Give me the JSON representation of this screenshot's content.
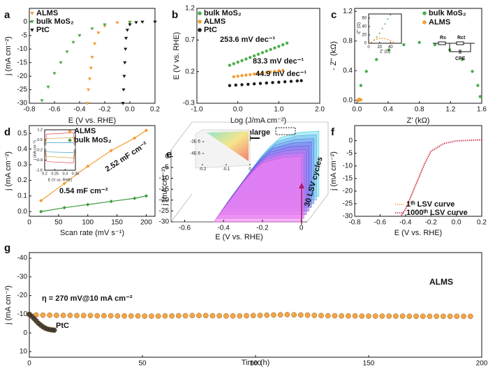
{
  "chart_data": [
    {
      "panel": "a",
      "type": "line",
      "xlabel": "E (V vs. RHE)",
      "ylabel": "j (mA cm⁻²)",
      "xlim": [
        -0.8,
        0.2
      ],
      "ylim": [
        -30,
        5
      ],
      "xticks": [
        -0.8,
        -0.6,
        -0.4,
        -0.2,
        {
          "value": 0,
          "label": "0.0"
        },
        0.2
      ],
      "yticks": [
        -30,
        -25,
        -20,
        -15,
        -10,
        -5,
        0
      ],
      "series": [
        {
          "name": "ALMS",
          "color": "#f39c34",
          "marker": "tri",
          "x": [
            0.2,
            0,
            -0.1,
            -0.2,
            -0.25,
            -0.28,
            -0.3,
            -0.31,
            -0.32,
            -0.33,
            -0.34
          ],
          "values": [
            0,
            0,
            -0.3,
            -1.5,
            -4,
            -8,
            -13,
            -17,
            -21,
            -25,
            -30
          ]
        },
        {
          "name": "bulk MoS₂",
          "color": "#4dae4a",
          "marker": "tri",
          "x": [
            0.2,
            0,
            -0.2,
            -0.3,
            -0.4,
            -0.45,
            -0.5,
            -0.55,
            -0.6,
            -0.65,
            -0.7
          ],
          "values": [
            0,
            -0.2,
            -1,
            -2.5,
            -5,
            -7.5,
            -11,
            -15,
            -19,
            -24,
            -29
          ]
        },
        {
          "name": "PtC",
          "color": "#1a1a1a",
          "marker": "tri",
          "x": [
            0.2,
            0.1,
            0.05,
            0,
            -0.02,
            -0.03,
            -0.035,
            -0.04,
            -0.045,
            -0.05,
            -0.055
          ],
          "values": [
            0,
            0,
            -0.2,
            -1,
            -3,
            -6,
            -10,
            -15,
            -20,
            -25,
            -30
          ]
        }
      ]
    },
    {
      "panel": "b",
      "type": "line",
      "xlabel": "Log (J/mA cm⁻²)",
      "ylabel": "E (V vs. RHE)",
      "xlim": [
        -1,
        2
      ],
      "ylim": [
        -0.3,
        1.2
      ],
      "xticks": [
        {
          "value": -1,
          "label": "-1.0"
        },
        {
          "value": 0,
          "label": "0.0"
        },
        {
          "value": 1,
          "label": "1.0"
        },
        {
          "value": 2,
          "label": "2.0"
        }
      ],
      "yticks": [
        -0.3,
        0.2,
        0.7,
        1.2
      ],
      "series": [
        {
          "name": "bulk MoS₂",
          "color": "#4dae4a",
          "marker": "circle",
          "x": [
            -0.2,
            -0.1,
            0,
            0.1,
            0.2,
            0.3,
            0.4,
            0.5,
            0.6,
            0.7,
            0.8,
            0.9,
            1.0,
            1.1,
            1.2
          ],
          "values": [
            0.3,
            0.325,
            0.35,
            0.375,
            0.4,
            0.425,
            0.45,
            0.475,
            0.5,
            0.525,
            0.55,
            0.575,
            0.6,
            0.625,
            0.65
          ]
        },
        {
          "name": "ALMS",
          "color": "#f39c34",
          "marker": "circle",
          "x": [
            -0.1,
            0,
            0.1,
            0.2,
            0.3,
            0.4,
            0.5,
            0.6,
            0.7,
            0.8,
            0.9,
            1.0,
            1.1
          ],
          "values": [
            0.12,
            0.128,
            0.137,
            0.145,
            0.153,
            0.162,
            0.17,
            0.178,
            0.187,
            0.195,
            0.203,
            0.212,
            0.22
          ]
        },
        {
          "name": "PtC",
          "color": "#1a1a1a",
          "marker": "circle",
          "x": [
            -0.2,
            -0.05,
            0.1,
            0.25,
            0.4,
            0.55,
            0.7,
            0.85,
            1.0,
            1.15,
            1.3,
            1.45,
            1.55
          ],
          "values": [
            -0.02,
            -0.013,
            -0.007,
            0,
            0.007,
            0.013,
            0.02,
            0.027,
            0.033,
            0.04,
            0.047,
            0.053,
            0.058
          ]
        }
      ],
      "annotations": [
        {
          "text": "253.6 mV dec⁻¹",
          "color": "#3d9a3a"
        },
        {
          "text": "83.3 mV dec⁻¹",
          "color": "#f39c34"
        },
        {
          "text": "44.9 mV dec⁻¹",
          "color": "#1a1a1a"
        }
      ]
    },
    {
      "panel": "c",
      "type": "line",
      "xlabel": "Z' (kΩ)",
      "ylabel": "- Z'' (kΩ)",
      "xlim": [
        -0.03,
        1.6
      ],
      "ylim": [
        -0.04,
        1.24
      ],
      "xticks": [
        {
          "value": 0,
          "label": "0.0"
        },
        0.4,
        0.8,
        1.2,
        1.6
      ],
      "yticks": [
        {
          "value": 0,
          "label": "0.0"
        },
        0.4,
        0.8,
        1.2
      ],
      "series": [
        {
          "name": "bulk MoS₂",
          "color": "#4dae4a",
          "marker": "circle",
          "x": [
            0.02,
            0.05,
            0.12,
            0.25,
            0.41,
            0.6,
            0.8,
            1.0,
            1.19,
            1.35,
            1.48,
            1.55,
            1.58
          ],
          "values": [
            0,
            0.2,
            0.39,
            0.55,
            0.68,
            0.75,
            0.78,
            0.75,
            0.68,
            0.55,
            0.39,
            0.2,
            0.05
          ]
        },
        {
          "name": "ALMS",
          "color": "#f39c34",
          "marker": "circle",
          "x": [
            0.01,
            0.02,
            0.03,
            0.04,
            0.05
          ],
          "values": [
            0,
            0.01,
            0.015,
            0.01,
            0.005
          ]
        }
      ],
      "circuit": [
        "Rs",
        "Rct",
        "CPE"
      ]
    },
    {
      "type": "line",
      "inset": true,
      "xlabel": "Z' (Ω)",
      "ylabel": "-Z'' (Ω)",
      "xlim": [
        0,
        60
      ],
      "ylim": [
        0,
        70
      ],
      "xticks": [
        0,
        20,
        40
      ],
      "yticks": [
        0,
        20,
        40,
        60
      ],
      "series": [
        {
          "color": "#4dae4a",
          "marker": "dot",
          "x": [
            5,
            10,
            15,
            20,
            25,
            30,
            35,
            40
          ],
          "values": [
            2,
            8,
            15,
            24,
            35,
            46,
            58,
            68
          ]
        },
        {
          "color": "#f39c34",
          "marker": "dot",
          "x": [
            5,
            10,
            15,
            20,
            25,
            30,
            35,
            40,
            45
          ],
          "values": [
            2,
            7,
            10,
            12,
            12,
            11,
            9,
            6,
            2
          ]
        }
      ]
    },
    {
      "panel": "d",
      "type": "line",
      "xlabel": "Scan rate (mV s⁻¹)",
      "ylabel": "j (mA cm⁻²)",
      "xlim": [
        0,
        215
      ],
      "ylim": [
        -0.03,
        0.55
      ],
      "xticks": [
        0,
        50,
        100,
        150,
        200
      ],
      "yticks": [
        {
          "value": 0,
          "label": "0.0"
        },
        0.1,
        0.2,
        0.3,
        0.4,
        0.5
      ],
      "series": [
        {
          "name": "ALMS",
          "color": "#f39c34",
          "marker": "diamond",
          "line": true,
          "x": [
            20,
            60,
            100,
            140,
            180,
            200
          ],
          "values": [
            0.07,
            0.18,
            0.29,
            0.39,
            0.47,
            0.52
          ]
        },
        {
          "name": "bulk MoS₂",
          "color": "#3d9a3a",
          "marker": "diamond",
          "line": true,
          "x": [
            20,
            60,
            100,
            140,
            180,
            200
          ],
          "values": [
            0,
            0.025,
            0.045,
            0.065,
            0.085,
            0.1
          ]
        }
      ],
      "annotations": [
        {
          "text": "2.52 mF cm⁻²",
          "color": "#f39c34"
        },
        {
          "text": "0.54 mF cm⁻²",
          "color": "#3d9a3a"
        }
      ]
    },
    {
      "type": "line",
      "inset": true,
      "xlabel": "E (V vs. RHE)",
      "ylabel": "j (mA cm⁻²)",
      "xlim": [
        0.2,
        0.35
      ],
      "ylim": [
        -1.6,
        1.2
      ],
      "xticks": [
        0.2,
        0.25,
        0.3,
        0.35
      ],
      "yticks": [
        1.2,
        0.5,
        -0.2,
        -0.9,
        -1.6
      ],
      "series": [
        {
          "color": "#e04b4b",
          "marker": "none",
          "line": true,
          "x": [
            0.2,
            0.21,
            0.34,
            0.35,
            0.34,
            0.21,
            0.2
          ],
          "values": [
            0,
            0.9,
            1.0,
            0,
            -1.1,
            -1.0,
            0
          ]
        },
        {
          "color": "#c9a23a",
          "marker": "none",
          "line": true,
          "x": [
            0.2,
            0.21,
            0.34,
            0.35,
            0.34,
            0.21,
            0.2
          ],
          "values": [
            0,
            0.6,
            0.65,
            0,
            -0.75,
            -0.65,
            0
          ]
        },
        {
          "color": "#3aa0c9",
          "marker": "none",
          "line": true,
          "x": [
            0.2,
            0.21,
            0.34,
            0.35,
            0.34,
            0.21,
            0.2
          ],
          "values": [
            0,
            0.3,
            0.32,
            0,
            -0.38,
            -0.33,
            0
          ]
        }
      ]
    },
    {
      "panel": "e",
      "type": "surface3d",
      "xlabel": "E (V vs. RHE)",
      "ylabel": "j (mA cm⁻²)",
      "xlim": [
        -0.67,
        0.03
      ],
      "ylim": [
        -30,
        3
      ],
      "xticks": [
        -0.6,
        -0.4,
        -0.2,
        0
      ],
      "yticks": [
        -30,
        -25,
        -20,
        -15,
        -10,
        -5,
        0
      ],
      "x": [
        0,
        -0.1,
        -0.2,
        -0.25,
        -0.3,
        -0.35,
        -0.4,
        -0.45
      ],
      "values": [
        0,
        -0.5,
        -3,
        -7,
        -12,
        -18,
        -24,
        -30
      ],
      "annotations": [
        {
          "text": "enlarge",
          "color": "#111111"
        },
        {
          "text": "30 LSV cycles",
          "color": "#b0186e"
        }
      ]
    },
    {
      "type": "inset3d",
      "inset": true,
      "xlim": [
        -0.2,
        0
      ],
      "ylim": [
        -6e-05,
        0
      ],
      "xticks": [
        -0.2,
        -0.1,
        0
      ],
      "yticks": [
        {
          "value": -2e-05,
          "label": "-2E-5"
        },
        {
          "value": -4e-05,
          "label": "-4E-5"
        }
      ]
    },
    {
      "panel": "f",
      "type": "line",
      "xlabel": "E (V vs. RHE)",
      "ylabel": "j (mA cm⁻²)",
      "xlim": [
        -0.8,
        0.2
      ],
      "ylim": [
        -30,
        6
      ],
      "xticks": [
        -0.8,
        -0.6,
        -0.4,
        -0.2,
        {
          "value": 0,
          "label": "0.0"
        },
        0.2
      ],
      "yticks": [
        -30,
        -25,
        -20,
        -15,
        -10,
        -5,
        0
      ],
      "series": [
        {
          "name": "1ᵗʰ LSV curve",
          "color": "#f5a623",
          "marker": "none",
          "line": true,
          "dotted": true,
          "x": [
            0.2,
            0,
            -0.1,
            -0.2,
            -0.25,
            -0.3,
            -0.35,
            -0.4,
            -0.43
          ],
          "values": [
            0.5,
            0,
            -1,
            -4,
            -9,
            -15,
            -21,
            -27,
            -30
          ]
        },
        {
          "name": "1000ᵗʰ LSV curve",
          "color": "#c2187a",
          "marker": "none",
          "line": true,
          "dotted": true,
          "x": [
            0.2,
            0,
            -0.1,
            -0.2,
            -0.25,
            -0.3,
            -0.35,
            -0.4,
            -0.44
          ],
          "values": [
            0.3,
            -0.1,
            -1.2,
            -4.3,
            -9.3,
            -15.3,
            -21.3,
            -27.3,
            -30
          ]
        }
      ]
    },
    {
      "panel": "g",
      "type": "line",
      "xlabel": "Time (h)",
      "ylabel": "j (mA cm⁻²)",
      "xlim": [
        0,
        200
      ],
      "ylim": [
        13,
        -43
      ],
      "xticks": [
        0,
        50,
        100,
        150,
        200
      ],
      "yticks": [
        -40,
        -30,
        -20,
        -10,
        0,
        10
      ],
      "series": [
        {
          "name": "ALMS",
          "color": "#f39c34",
          "marker": "ball",
          "x": [
            0,
            3,
            6,
            9,
            12,
            15,
            18,
            21,
            24,
            27,
            30,
            33,
            36,
            39,
            42,
            45,
            48,
            51,
            54,
            57,
            60,
            63,
            66,
            69,
            72,
            75,
            78,
            81,
            84,
            87,
            90,
            93,
            96,
            99,
            102,
            105,
            108,
            111,
            114,
            117,
            120,
            123,
            126,
            129,
            132,
            135,
            138,
            141,
            144,
            147,
            150,
            153,
            156,
            159,
            162,
            165,
            168,
            171,
            174,
            177,
            180,
            183,
            186,
            189,
            192,
            195
          ],
          "values": [
            -9.8,
            -9.6,
            -9.5,
            -9.5,
            -9.4,
            -9.4,
            -9.4,
            -9.3,
            -9.3,
            -9.3,
            -9.2,
            -9.2,
            -9.2,
            -9.1,
            -9.1,
            -9.1,
            -9.1,
            -9.0,
            -9.0,
            -9.0,
            -9.1,
            -9.1,
            -9.2,
            -9.2,
            -9.3,
            -9.3,
            -9.3,
            -9.2,
            -9.2,
            -9.1,
            -9.1,
            -9.1,
            -9.2,
            -9.3,
            -9.4,
            -9.5,
            -9.6,
            -9.7,
            -9.8,
            -9.7,
            -9.6,
            -9.5,
            -9.4,
            -9.3,
            -9.2,
            -9.2,
            -9.1,
            -9.1,
            -9.1,
            -9.0,
            -9.0,
            -9.0,
            -9.0,
            -9.0,
            -9.0,
            -9.0,
            -8.9,
            -8.9,
            -8.9,
            -8.9,
            -8.9,
            -8.9,
            -8.9,
            -8.9,
            -8.9,
            -8.9
          ]
        },
        {
          "name": "PtC",
          "color": "#333333",
          "marker": "ball",
          "x": [
            0,
            1,
            2,
            3,
            4,
            5,
            6,
            7,
            8,
            9,
            10,
            11
          ],
          "values": [
            -10,
            -9,
            -7.8,
            -6.5,
            -5.2,
            -4.2,
            -3.3,
            -2.6,
            -2.1,
            -1.8,
            -1.6,
            -1.5
          ]
        }
      ],
      "annotations": [
        {
          "text": "η = 270 mV@10 mA cm⁻²",
          "color": "#666666"
        }
      ]
    }
  ]
}
